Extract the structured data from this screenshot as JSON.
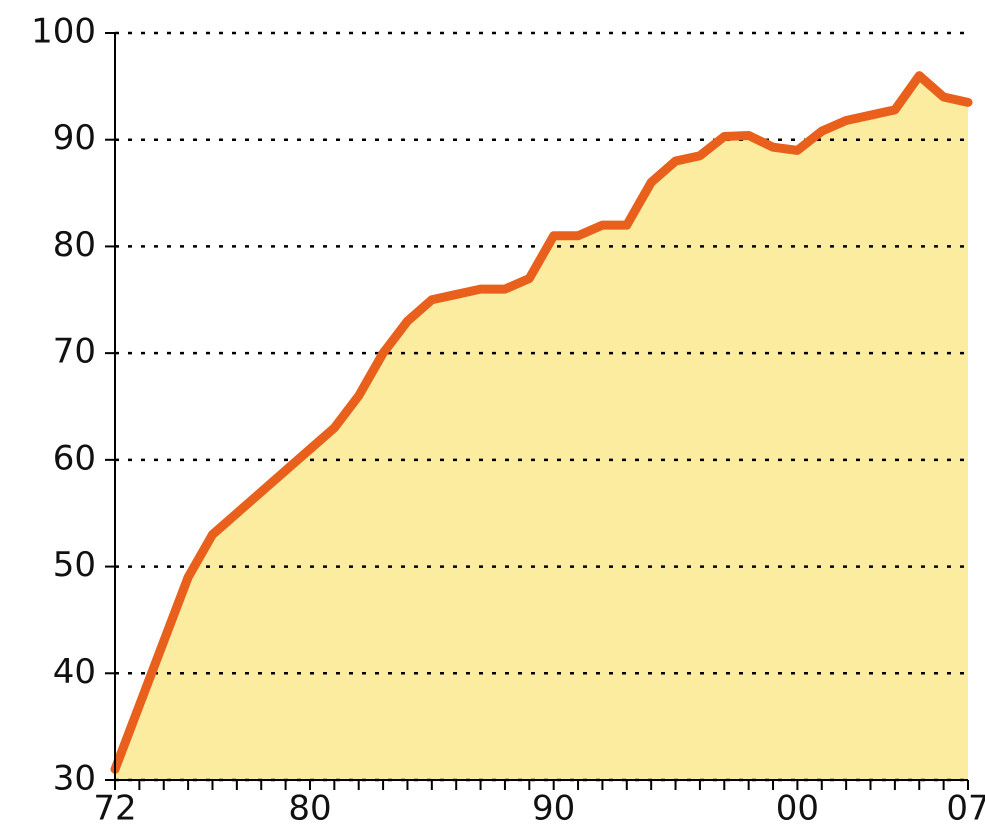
{
  "chart_data": {
    "type": "area",
    "categories": [
      "72",
      null,
      null,
      null,
      null,
      null,
      null,
      null,
      "80",
      null,
      null,
      null,
      null,
      null,
      null,
      null,
      null,
      null,
      "90",
      null,
      null,
      null,
      null,
      null,
      null,
      null,
      null,
      null,
      "00",
      null,
      null,
      null,
      null,
      null,
      null,
      "07"
    ],
    "values": [
      31,
      37,
      43,
      49,
      53,
      55,
      57,
      59,
      61,
      63,
      66,
      70,
      73,
      75,
      75.5,
      76,
      76,
      77,
      81,
      81,
      82,
      82,
      86,
      88,
      88.5,
      90.3,
      90.4,
      89.3,
      89,
      90.8,
      91.8,
      92.3,
      92.8,
      96,
      94,
      93.5
    ],
    "color": "#e8601c",
    "fill": "#fcec9f",
    "ylim": [
      30,
      100
    ],
    "yticks": [
      30,
      40,
      50,
      60,
      70,
      80,
      90,
      100
    ],
    "grid": true
  }
}
